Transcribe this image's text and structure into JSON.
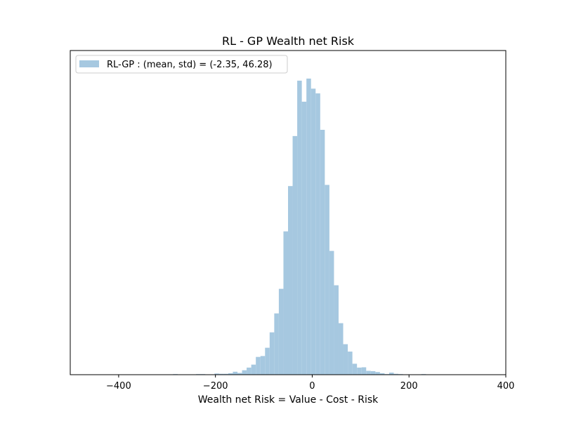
{
  "chart_data": {
    "type": "bar",
    "title": "RL - GP Wealth net Risk",
    "xlabel": "Wealth net Risk = Value - Cost - Risk",
    "ylabel": "",
    "xlim": [
      -500,
      400
    ],
    "ylim": [
      0,
      1
    ],
    "x_ticks": [
      -400,
      -200,
      0,
      200,
      400
    ],
    "x_tick_labels": [
      "−400",
      "−200",
      "0",
      "200",
      "400"
    ],
    "y_ticks_visible": false,
    "grid": false,
    "legend": {
      "placement": "top-left",
      "entries": [
        "RL-GP : (mean, std) = (-2.35, 46.28)"
      ]
    },
    "series": [
      {
        "name": "RL-GP : (mean, std) = (-2.35, 46.28)",
        "color": "#a6c8e0",
        "bin_width": 9.5,
        "bin_starts": [
          -430.0,
          -420.5,
          -411.0,
          -401.5,
          -392.0,
          -382.5,
          -373.0,
          -363.5,
          -354.0,
          -344.5,
          -335.0,
          -325.5,
          -316.0,
          -306.5,
          -297.0,
          -287.5,
          -278.0,
          -268.5,
          -259.0,
          -249.5,
          -240.0,
          -230.5,
          -221.0,
          -211.5,
          -202.0,
          -192.5,
          -183.0,
          -173.5,
          -164.0,
          -154.5,
          -145.0,
          -135.5,
          -126.0,
          -116.5,
          -107.0,
          -97.5,
          -88.0,
          -78.5,
          -69.0,
          -59.5,
          -50.0,
          -40.5,
          -31.0,
          -21.5,
          -12.0,
          -2.5,
          7.0,
          16.5,
          26.0,
          35.5,
          45.0,
          54.5,
          64.0,
          73.5,
          83.0,
          92.5,
          102.0,
          111.5,
          121.0,
          130.5,
          140.0,
          149.5,
          159.0,
          168.5,
          178.0,
          187.5,
          197.0,
          206.5,
          216.0,
          225.5,
          235.0,
          244.5,
          254.0,
          263.5,
          273.0,
          282.5,
          292.0,
          301.5,
          311.0,
          320.5,
          330.0,
          339.5,
          349.0,
          358.5,
          368.0
        ],
        "heights": [
          0.001,
          0.0,
          0.0,
          0.0,
          0.0,
          0.0,
          0.0,
          0.0,
          0.0,
          0.0,
          0.0,
          0.0,
          0.0,
          0.0,
          0.001,
          0.002,
          0.001,
          0.0,
          0.0,
          0.0,
          0.002,
          0.002,
          0.001,
          0.001,
          0.004,
          0.003,
          0.003,
          0.005,
          0.01,
          0.006,
          0.015,
          0.024,
          0.034,
          0.06,
          0.063,
          0.091,
          0.143,
          0.207,
          0.29,
          0.484,
          0.637,
          0.806,
          0.993,
          0.922,
          1.0,
          0.966,
          0.95,
          0.827,
          0.641,
          0.418,
          0.302,
          0.174,
          0.103,
          0.078,
          0.037,
          0.024,
          0.025,
          0.013,
          0.012,
          0.009,
          0.005,
          0.002,
          0.007,
          0.003,
          0.002,
          0.001,
          0.0,
          0.001,
          0.0,
          0.002,
          0.0,
          0.001,
          0.0,
          0.0,
          0.001,
          0.0,
          0.0,
          0.0,
          0.001,
          0.0,
          0.001,
          0.0,
          0.0,
          0.0,
          0.0
        ]
      }
    ]
  }
}
